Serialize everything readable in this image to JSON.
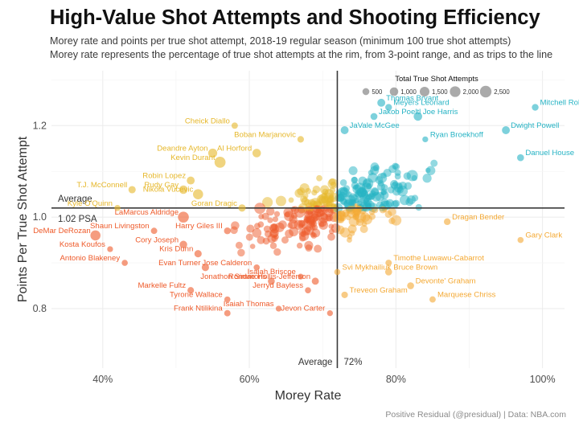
{
  "title": "High-Value Shot Attempts and Shooting Efficiency",
  "subtitle_line1": "Morey rate and points per true shot attempt, 2018-19 regular season (minimum 100 true shot attempts)",
  "subtitle_line2": "Morey rate represents the percentage of true shot attempts at the rim, from 3-point range, and as trips to the line",
  "caption": "Positive Residual (@presidual)  |  Data: NBA.com",
  "colors": {
    "top_right": "#26b3c4",
    "top_left": "#e6b72a",
    "bottom_right": "#f4a934",
    "bottom_left": "#ee5a2a",
    "reference_line": "#3a3a3a",
    "grid": "#ebebeb"
  },
  "chart_data": {
    "type": "scatter",
    "xlabel": "Morey Rate",
    "ylabel": "Points Per True Shot Attempt",
    "xlim": [
      0.33,
      1.03
    ],
    "ylim": [
      0.67,
      1.32
    ],
    "x_ticks": [
      0.4,
      0.6,
      0.8,
      1.0
    ],
    "x_tick_labels": [
      "40%",
      "60%",
      "80%",
      "100%"
    ],
    "y_ticks": [
      0.8,
      1.0,
      1.2
    ],
    "y_tick_labels": [
      "0.8",
      "1.0",
      "1.2"
    ],
    "grid": true,
    "reference_lines": {
      "x": 0.72,
      "x_label": "Average",
      "x_value_label": "72%",
      "y": 1.02,
      "y_label": "Average",
      "y_value_label": "1.02 PSA"
    },
    "size_legend": {
      "title": "Total True Shot Attempts",
      "placement": "top-right",
      "values": [
        500,
        1000,
        1500,
        2000,
        2500
      ],
      "labels": [
        "500",
        "1,000",
        "1,500",
        "2,000",
        "2,500"
      ]
    },
    "labeled_points": [
      {
        "name": "Thomas Bryant",
        "x": 0.78,
        "y": 1.25,
        "tsa": 800
      },
      {
        "name": "Meyers Leonard",
        "x": 0.79,
        "y": 1.24,
        "tsa": 450
      },
      {
        "name": "Mitchell Robinson",
        "x": 0.99,
        "y": 1.24,
        "tsa": 450
      },
      {
        "name": "Jakob Poeltl",
        "x": 0.77,
        "y": 1.22,
        "tsa": 500
      },
      {
        "name": "Joe Harris",
        "x": 0.83,
        "y": 1.22,
        "tsa": 1000
      },
      {
        "name": "Dwight Powell",
        "x": 0.95,
        "y": 1.19,
        "tsa": 800
      },
      {
        "name": "JaVale McGee",
        "x": 0.73,
        "y": 1.19,
        "tsa": 800
      },
      {
        "name": "Ryan Broekhoff",
        "x": 0.84,
        "y": 1.17,
        "tsa": 250
      },
      {
        "name": "Danuel House",
        "x": 0.97,
        "y": 1.13,
        "tsa": 500
      },
      {
        "name": "Cheick Diallo",
        "x": 0.58,
        "y": 1.2,
        "tsa": 350
      },
      {
        "name": "Boban Marjanovic",
        "x": 0.67,
        "y": 1.17,
        "tsa": 400
      },
      {
        "name": "Deandre Ayton",
        "x": 0.55,
        "y": 1.14,
        "tsa": 1200
      },
      {
        "name": "Al Horford",
        "x": 0.61,
        "y": 1.14,
        "tsa": 1000
      },
      {
        "name": "Kevin Durant",
        "x": 0.56,
        "y": 1.12,
        "tsa": 2200
      },
      {
        "name": "Robin Lopez",
        "x": 0.52,
        "y": 1.08,
        "tsa": 800
      },
      {
        "name": "T.J. McConnell",
        "x": 0.44,
        "y": 1.06,
        "tsa": 600
      },
      {
        "name": "Rudy Gay",
        "x": 0.51,
        "y": 1.06,
        "tsa": 1000
      },
      {
        "name": "Nikola Vucevic",
        "x": 0.53,
        "y": 1.05,
        "tsa": 1700
      },
      {
        "name": "Goran Dragic",
        "x": 0.59,
        "y": 1.02,
        "tsa": 600
      },
      {
        "name": "Kyle O'Quinn",
        "x": 0.42,
        "y": 1.02,
        "tsa": 300
      },
      {
        "name": "LaMarcus Aldridge",
        "x": 0.51,
        "y": 1.0,
        "tsa": 2100
      },
      {
        "name": "Shaun Livingston",
        "x": 0.47,
        "y": 0.97,
        "tsa": 350
      },
      {
        "name": "Harry Giles III",
        "x": 0.57,
        "y": 0.97,
        "tsa": 450
      },
      {
        "name": "DeMar DeRozan",
        "x": 0.39,
        "y": 0.96,
        "tsa": 1700
      },
      {
        "name": "Cory Joseph",
        "x": 0.51,
        "y": 0.94,
        "tsa": 700
      },
      {
        "name": "Kosta Koufos",
        "x": 0.41,
        "y": 0.93,
        "tsa": 250
      },
      {
        "name": "Kris Dunn",
        "x": 0.53,
        "y": 0.92,
        "tsa": 600
      },
      {
        "name": "Antonio Blakeney",
        "x": 0.43,
        "y": 0.9,
        "tsa": 300
      },
      {
        "name": "Evan Turner",
        "x": 0.54,
        "y": 0.89,
        "tsa": 600
      },
      {
        "name": "Jose Calderon",
        "x": 0.61,
        "y": 0.89,
        "tsa": 300
      },
      {
        "name": "Isaiah Briscoe",
        "x": 0.67,
        "y": 0.87,
        "tsa": 250
      },
      {
        "name": "Svi Mykhailiuk",
        "x": 0.72,
        "y": 0.88,
        "tsa": 300
      },
      {
        "name": "Timothe Luwawu-Cabarrot",
        "x": 0.79,
        "y": 0.9,
        "tsa": 350
      },
      {
        "name": "Dragan Bender",
        "x": 0.87,
        "y": 0.99,
        "tsa": 450
      },
      {
        "name": "Gary Clark",
        "x": 0.97,
        "y": 0.95,
        "tsa": 300
      },
      {
        "name": "Bruce Brown",
        "x": 0.79,
        "y": 0.88,
        "tsa": 500
      },
      {
        "name": "Rondae Hollis-Jefferson",
        "x": 0.69,
        "y": 0.86,
        "tsa": 550
      },
      {
        "name": "Devonte' Graham",
        "x": 0.82,
        "y": 0.85,
        "tsa": 500
      },
      {
        "name": "Jonathon Simmons",
        "x": 0.63,
        "y": 0.86,
        "tsa": 500
      },
      {
        "name": "Markelle Fultz",
        "x": 0.52,
        "y": 0.84,
        "tsa": 400
      },
      {
        "name": "Jerryd Bayless",
        "x": 0.68,
        "y": 0.84,
        "tsa": 300
      },
      {
        "name": "Treveon Graham",
        "x": 0.73,
        "y": 0.83,
        "tsa": 400
      },
      {
        "name": "Tyrone Wallace",
        "x": 0.57,
        "y": 0.82,
        "tsa": 300
      },
      {
        "name": "Marquese Chriss",
        "x": 0.85,
        "y": 0.82,
        "tsa": 350
      },
      {
        "name": "Isaiah Thomas",
        "x": 0.64,
        "y": 0.8,
        "tsa": 250
      },
      {
        "name": "Frank Ntilikina",
        "x": 0.57,
        "y": 0.79,
        "tsa": 350
      },
      {
        "name": "Jevon Carter",
        "x": 0.71,
        "y": 0.79,
        "tsa": 250
      }
    ]
  }
}
